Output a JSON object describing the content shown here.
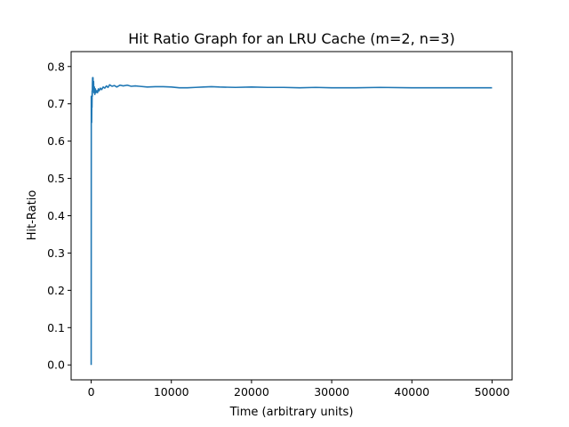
{
  "chart_data": {
    "type": "line",
    "title": "Hit Ratio Graph for an LRU Cache (m=2, n=3)",
    "xlabel": "Time (arbitrary units)",
    "ylabel": "Hit-Ratio",
    "xlim": [
      -2500,
      52500
    ],
    "ylim": [
      -0.04,
      0.84
    ],
    "x_ticks": [
      0,
      10000,
      20000,
      30000,
      40000,
      50000
    ],
    "x_tick_labels": [
      "0",
      "10000",
      "20000",
      "30000",
      "40000",
      "50000"
    ],
    "y_ticks": [
      0.0,
      0.1,
      0.2,
      0.3,
      0.4,
      0.5,
      0.6,
      0.7,
      0.8
    ],
    "y_tick_labels": [
      "0.0",
      "0.1",
      "0.2",
      "0.3",
      "0.4",
      "0.5",
      "0.6",
      "0.7",
      "0.8"
    ],
    "grid": false,
    "line_color": "#1f77b4",
    "series": [
      {
        "x": [
          0,
          15,
          30,
          45,
          60,
          80,
          100,
          120,
          140,
          160,
          180,
          200,
          230,
          260,
          300,
          340,
          400,
          460,
          520,
          600,
          700,
          800,
          900,
          1000,
          1150,
          1300,
          1500,
          1700,
          1900,
          2100,
          2300,
          2600,
          2900,
          3200,
          3600,
          4000,
          4500,
          5000,
          5500,
          6000,
          7000,
          8000,
          9000,
          10000,
          11000,
          12000,
          13000,
          14000,
          15000,
          16000,
          18000,
          20000,
          22000,
          24000,
          26000,
          28000,
          30000,
          33000,
          36000,
          40000,
          44000,
          48000,
          50000
        ],
        "y": [
          0.0,
          0.72,
          0.66,
          0.7,
          0.65,
          0.71,
          0.69,
          0.735,
          0.72,
          0.755,
          0.77,
          0.76,
          0.77,
          0.74,
          0.76,
          0.73,
          0.745,
          0.725,
          0.74,
          0.73,
          0.735,
          0.73,
          0.74,
          0.735,
          0.742,
          0.738,
          0.745,
          0.742,
          0.748,
          0.744,
          0.751,
          0.747,
          0.749,
          0.745,
          0.75,
          0.748,
          0.75,
          0.747,
          0.748,
          0.747,
          0.745,
          0.746,
          0.746,
          0.745,
          0.743,
          0.743,
          0.744,
          0.745,
          0.746,
          0.745,
          0.744,
          0.745,
          0.744,
          0.744,
          0.743,
          0.744,
          0.743,
          0.743,
          0.744,
          0.743,
          0.743,
          0.743,
          0.743
        ]
      }
    ]
  }
}
